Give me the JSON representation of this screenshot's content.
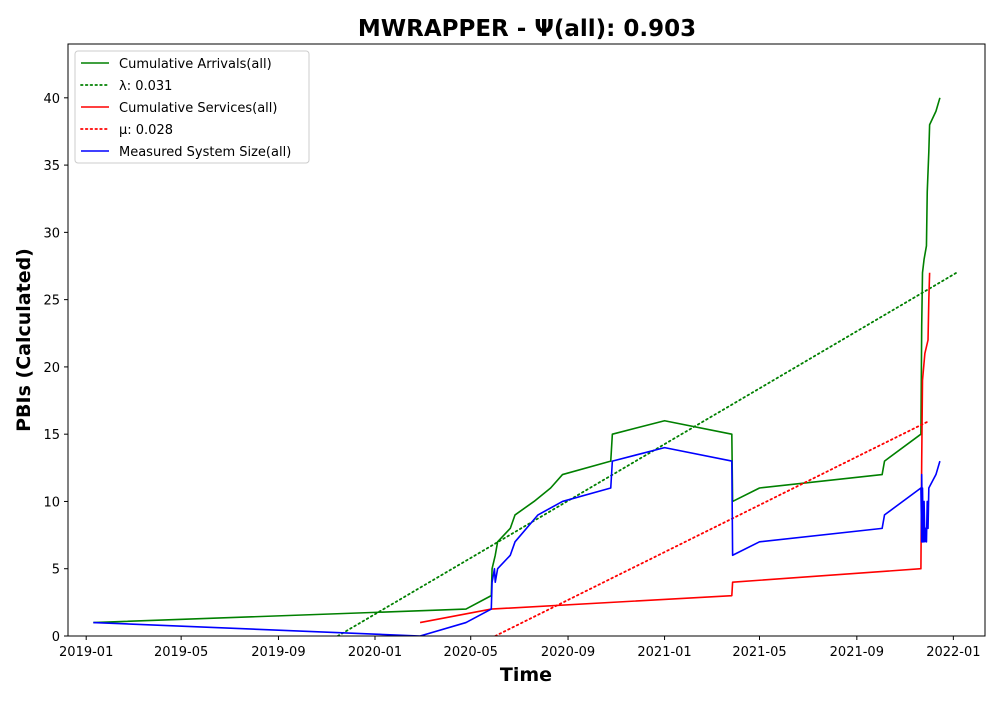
{
  "chart_data": {
    "type": "line",
    "title": "MWRAPPER -  Ψ(all): 0.903",
    "xlabel": "Time",
    "ylabel": "PBIs (Calculated)",
    "xlim": [
      "2018-12-09",
      "2022-02-10"
    ],
    "ylim": [
      0,
      44
    ],
    "x_ticks": [
      "2019-01",
      "2019-05",
      "2019-09",
      "2020-01",
      "2020-05",
      "2020-09",
      "2021-01",
      "2021-05",
      "2021-09",
      "2022-01"
    ],
    "y_ticks": [
      0,
      5,
      10,
      15,
      20,
      25,
      30,
      35,
      40
    ],
    "grid": false,
    "legend_position": "top-left",
    "series": [
      {
        "name": "Cumulative Arrivals(all)",
        "color": "#008000",
        "style": "solid",
        "points": [
          [
            "2019-01-10",
            1
          ],
          [
            "2020-04-25",
            2
          ],
          [
            "2020-05-27",
            3
          ],
          [
            "2020-05-28",
            5
          ],
          [
            "2020-06-01",
            6
          ],
          [
            "2020-06-04",
            7
          ],
          [
            "2020-06-20",
            8
          ],
          [
            "2020-06-26",
            9
          ],
          [
            "2020-07-20",
            10
          ],
          [
            "2020-08-10",
            11
          ],
          [
            "2020-08-25",
            12
          ],
          [
            "2020-10-25",
            13
          ],
          [
            "2020-10-27",
            15
          ],
          [
            "2021-01-01",
            16
          ],
          [
            "2021-03-27",
            15
          ],
          [
            "2021-03-28",
            10
          ],
          [
            "2021-05-01",
            11
          ],
          [
            "2021-10-03",
            12
          ],
          [
            "2021-10-06",
            13
          ],
          [
            "2021-11-21",
            15
          ],
          [
            "2021-11-22",
            23
          ],
          [
            "2021-11-23",
            27
          ],
          [
            "2021-11-25",
            28
          ],
          [
            "2021-11-28",
            29
          ],
          [
            "2021-11-29",
            33
          ],
          [
            "2021-12-01",
            36
          ],
          [
            "2021-12-02",
            38
          ],
          [
            "2021-12-10",
            39
          ],
          [
            "2021-12-15",
            40
          ]
        ]
      },
      {
        "name": "λ: 0.031",
        "color": "#008000",
        "style": "dotted",
        "points": [
          [
            "2019-11-15",
            0
          ],
          [
            "2022-01-05",
            27
          ]
        ]
      },
      {
        "name": "Cumulative Services(all)",
        "color": "#ff0000",
        "style": "solid",
        "points": [
          [
            "2020-02-27",
            1
          ],
          [
            "2020-05-27",
            2
          ],
          [
            "2021-03-27",
            3
          ],
          [
            "2021-03-28",
            4
          ],
          [
            "2021-11-21",
            5
          ],
          [
            "2021-11-22",
            13
          ],
          [
            "2021-11-23",
            19
          ],
          [
            "2021-11-26",
            21
          ],
          [
            "2021-11-30",
            22
          ],
          [
            "2021-12-01",
            25
          ],
          [
            "2021-12-02",
            27
          ]
        ]
      },
      {
        "name": "μ: 0.028",
        "color": "#ff0000",
        "style": "dotted",
        "points": [
          [
            "2020-06-01",
            0
          ],
          [
            "2021-12-02",
            16
          ]
        ]
      },
      {
        "name": "Measured System Size(all)",
        "color": "#0000ff",
        "style": "solid",
        "points": [
          [
            "2019-01-10",
            1
          ],
          [
            "2020-02-27",
            0
          ],
          [
            "2020-04-25",
            1
          ],
          [
            "2020-05-27",
            2
          ],
          [
            "2020-05-28",
            4
          ],
          [
            "2020-05-31",
            5
          ],
          [
            "2020-06-01",
            4
          ],
          [
            "2020-06-04",
            5
          ],
          [
            "2020-06-20",
            6
          ],
          [
            "2020-06-26",
            7
          ],
          [
            "2020-07-25",
            9
          ],
          [
            "2020-08-25",
            10
          ],
          [
            "2020-10-25",
            11
          ],
          [
            "2020-10-27",
            13
          ],
          [
            "2021-01-01",
            14
          ],
          [
            "2021-03-27",
            13
          ],
          [
            "2021-03-28",
            6
          ],
          [
            "2021-05-01",
            7
          ],
          [
            "2021-10-03",
            8
          ],
          [
            "2021-10-06",
            9
          ],
          [
            "2021-11-21",
            11
          ],
          [
            "2021-11-22",
            7
          ],
          [
            "2021-11-22",
            12
          ],
          [
            "2021-11-23",
            7
          ],
          [
            "2021-11-23",
            11
          ],
          [
            "2021-11-24",
            7
          ],
          [
            "2021-11-25",
            10
          ],
          [
            "2021-11-26",
            7
          ],
          [
            "2021-11-27",
            8
          ],
          [
            "2021-11-28",
            7
          ],
          [
            "2021-11-29",
            10
          ],
          [
            "2021-11-30",
            8
          ],
          [
            "2021-12-01",
            11
          ],
          [
            "2021-12-10",
            12
          ],
          [
            "2021-12-15",
            13
          ]
        ]
      }
    ]
  }
}
